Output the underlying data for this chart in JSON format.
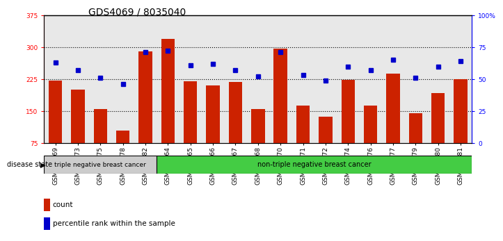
{
  "title": "GDS4069 / 8035040",
  "samples": [
    "GSM678369",
    "GSM678373",
    "GSM678375",
    "GSM678378",
    "GSM678382",
    "GSM678364",
    "GSM678365",
    "GSM678366",
    "GSM678367",
    "GSM678368",
    "GSM678370",
    "GSM678371",
    "GSM678372",
    "GSM678374",
    "GSM678376",
    "GSM678377",
    "GSM678379",
    "GSM678380",
    "GSM678381"
  ],
  "counts": [
    222,
    200,
    155,
    105,
    290,
    320,
    220,
    210,
    218,
    155,
    297,
    163,
    137,
    223,
    163,
    238,
    145,
    192,
    225
  ],
  "percentiles": [
    63,
    57,
    51,
    46,
    71,
    72,
    61,
    62,
    57,
    52,
    71,
    53,
    49,
    60,
    57,
    65,
    51,
    60,
    64
  ],
  "group1_count": 5,
  "group1_label": "triple negative breast cancer",
  "group2_label": "non-triple negative breast cancer",
  "disease_state_label": "disease state",
  "ylim_left": [
    75,
    375
  ],
  "ylim_right": [
    0,
    100
  ],
  "yticks_left": [
    75,
    150,
    225,
    300,
    375
  ],
  "yticks_right": [
    0,
    25,
    50,
    75,
    100
  ],
  "ytick_labels_right": [
    "0",
    "25",
    "50",
    "75",
    "100%"
  ],
  "bar_color": "#cc2200",
  "dot_color": "#0000cc",
  "group1_bg": "#cccccc",
  "group2_bg": "#44cc44",
  "col_bg": "#e8e8e8",
  "legend_count_label": "count",
  "legend_pct_label": "percentile rank within the sample",
  "title_fontsize": 10,
  "tick_label_fontsize": 6.5,
  "axis_label_fontsize": 8
}
